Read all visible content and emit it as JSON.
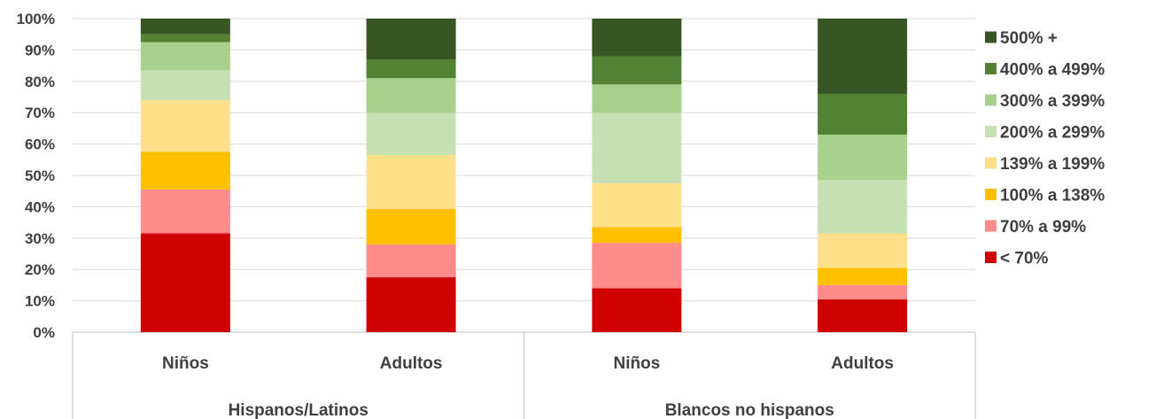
{
  "chart_data": {
    "type": "bar",
    "stacked": true,
    "ylim": [
      0,
      100
    ],
    "y_ticks": [
      "0%",
      "10%",
      "20%",
      "30%",
      "40%",
      "50%",
      "60%",
      "70%",
      "80%",
      "90%",
      "100%"
    ],
    "grid": true,
    "legend_position": "right",
    "categories": [
      "Niños",
      "Adultos",
      "Niños",
      "Adultos"
    ],
    "groups": [
      {
        "label": "Hispanos/Latinos",
        "categories": [
          0,
          1
        ]
      },
      {
        "label": "Blancos no hispanos",
        "categories": [
          2,
          3
        ]
      }
    ],
    "series": [
      {
        "name": "< 70%",
        "color": "#d00000",
        "values": [
          31.5,
          17.5,
          14,
          10.5
        ]
      },
      {
        "name": "70% a 99%",
        "color": "#ff8b8b",
        "values": [
          14,
          10.5,
          14.5,
          4.5
        ]
      },
      {
        "name": "100% a 138%",
        "color": "#ffc000",
        "values": [
          12,
          11.3,
          5,
          5.5
        ]
      },
      {
        "name": "139% a 199%",
        "color": "#ffe08a",
        "values": [
          16.5,
          17.2,
          14,
          11
        ]
      },
      {
        "name": "200% a 299%",
        "color": "#c6e0b4",
        "values": [
          9.5,
          13.5,
          22.5,
          17
        ]
      },
      {
        "name": "300% a 399%",
        "color": "#a9d18e",
        "values": [
          9,
          11,
          9,
          14.5
        ]
      },
      {
        "name": "400% a 499%",
        "color": "#548235",
        "values": [
          2.5,
          6,
          9,
          13
        ]
      },
      {
        "name": "500% +",
        "color": "#375623",
        "values": [
          5,
          13,
          12,
          24
        ]
      }
    ]
  }
}
